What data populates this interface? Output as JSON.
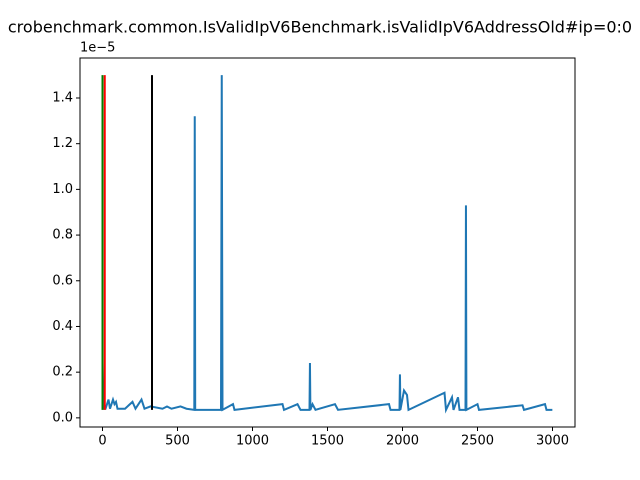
{
  "chart_data": {
    "type": "line",
    "title": "crobenchmark.common.IsValidIpV6Benchmark.isValidIpV6AddressOld#ip=0:0",
    "y_offset_label": "1e−5",
    "xlim": [
      -150,
      3150
    ],
    "ylim": [
      -0.04,
      1.575
    ],
    "xticks": [
      0,
      500,
      1000,
      1500,
      2000,
      2500,
      3000
    ],
    "yticks": [
      {
        "value": 0,
        "label": "0.0"
      },
      {
        "value": 0.2,
        "label": "0.2"
      },
      {
        "value": 0.4,
        "label": "0.4"
      },
      {
        "value": 0.6,
        "label": "0.6"
      },
      {
        "value": 0.8,
        "label": "0.8"
      },
      {
        "value": 1.0,
        "label": "1.0"
      },
      {
        "value": 1.2,
        "label": "1.2"
      },
      {
        "value": 1.4,
        "label": "1.4"
      }
    ],
    "series": [
      {
        "color": "#1f77b4",
        "x": [
          0,
          8,
          20,
          40,
          50,
          70,
          80,
          90,
          100,
          150,
          200,
          220,
          260,
          280,
          320,
          400,
          430,
          460,
          520,
          560,
          612,
          615,
          618,
          790,
          795,
          800,
          870,
          880,
          1200,
          1210,
          1300,
          1320,
          1380,
          1383,
          1386,
          1400,
          1420,
          1550,
          1570,
          1910,
          1920,
          1980,
          1983,
          1986,
          2010,
          2030,
          2040,
          2280,
          2290,
          2330,
          2340,
          2370,
          2380,
          2420,
          2423,
          2426,
          2500,
          2510,
          2800,
          2810,
          2950,
          2960,
          2999
        ],
        "values": [
          0.24,
          0.04,
          0.04,
          0.08,
          0.04,
          0.08,
          0.06,
          0.07,
          0.04,
          0.04,
          0.07,
          0.04,
          0.08,
          0.04,
          0.05,
          0.04,
          0.05,
          0.04,
          0.05,
          0.04,
          0.035,
          1.32,
          0.035,
          0.035,
          1.5,
          0.035,
          0.06,
          0.035,
          0.06,
          0.035,
          0.06,
          0.035,
          0.035,
          0.24,
          0.035,
          0.06,
          0.035,
          0.06,
          0.035,
          0.06,
          0.035,
          0.035,
          0.19,
          0.035,
          0.12,
          0.1,
          0.035,
          0.11,
          0.035,
          0.09,
          0.035,
          0.09,
          0.035,
          0.035,
          0.93,
          0.035,
          0.06,
          0.035,
          0.055,
          0.035,
          0.06,
          0.035,
          0.035
        ]
      }
    ],
    "vlines": [
      {
        "x": 0,
        "ymin": 0.035,
        "ymax": 1.5,
        "color": "green"
      },
      {
        "x": 15,
        "ymin": 0.035,
        "ymax": 1.5,
        "color": "red"
      },
      {
        "x": 330,
        "ymin": 0.035,
        "ymax": 1.5,
        "color": "black"
      }
    ]
  }
}
